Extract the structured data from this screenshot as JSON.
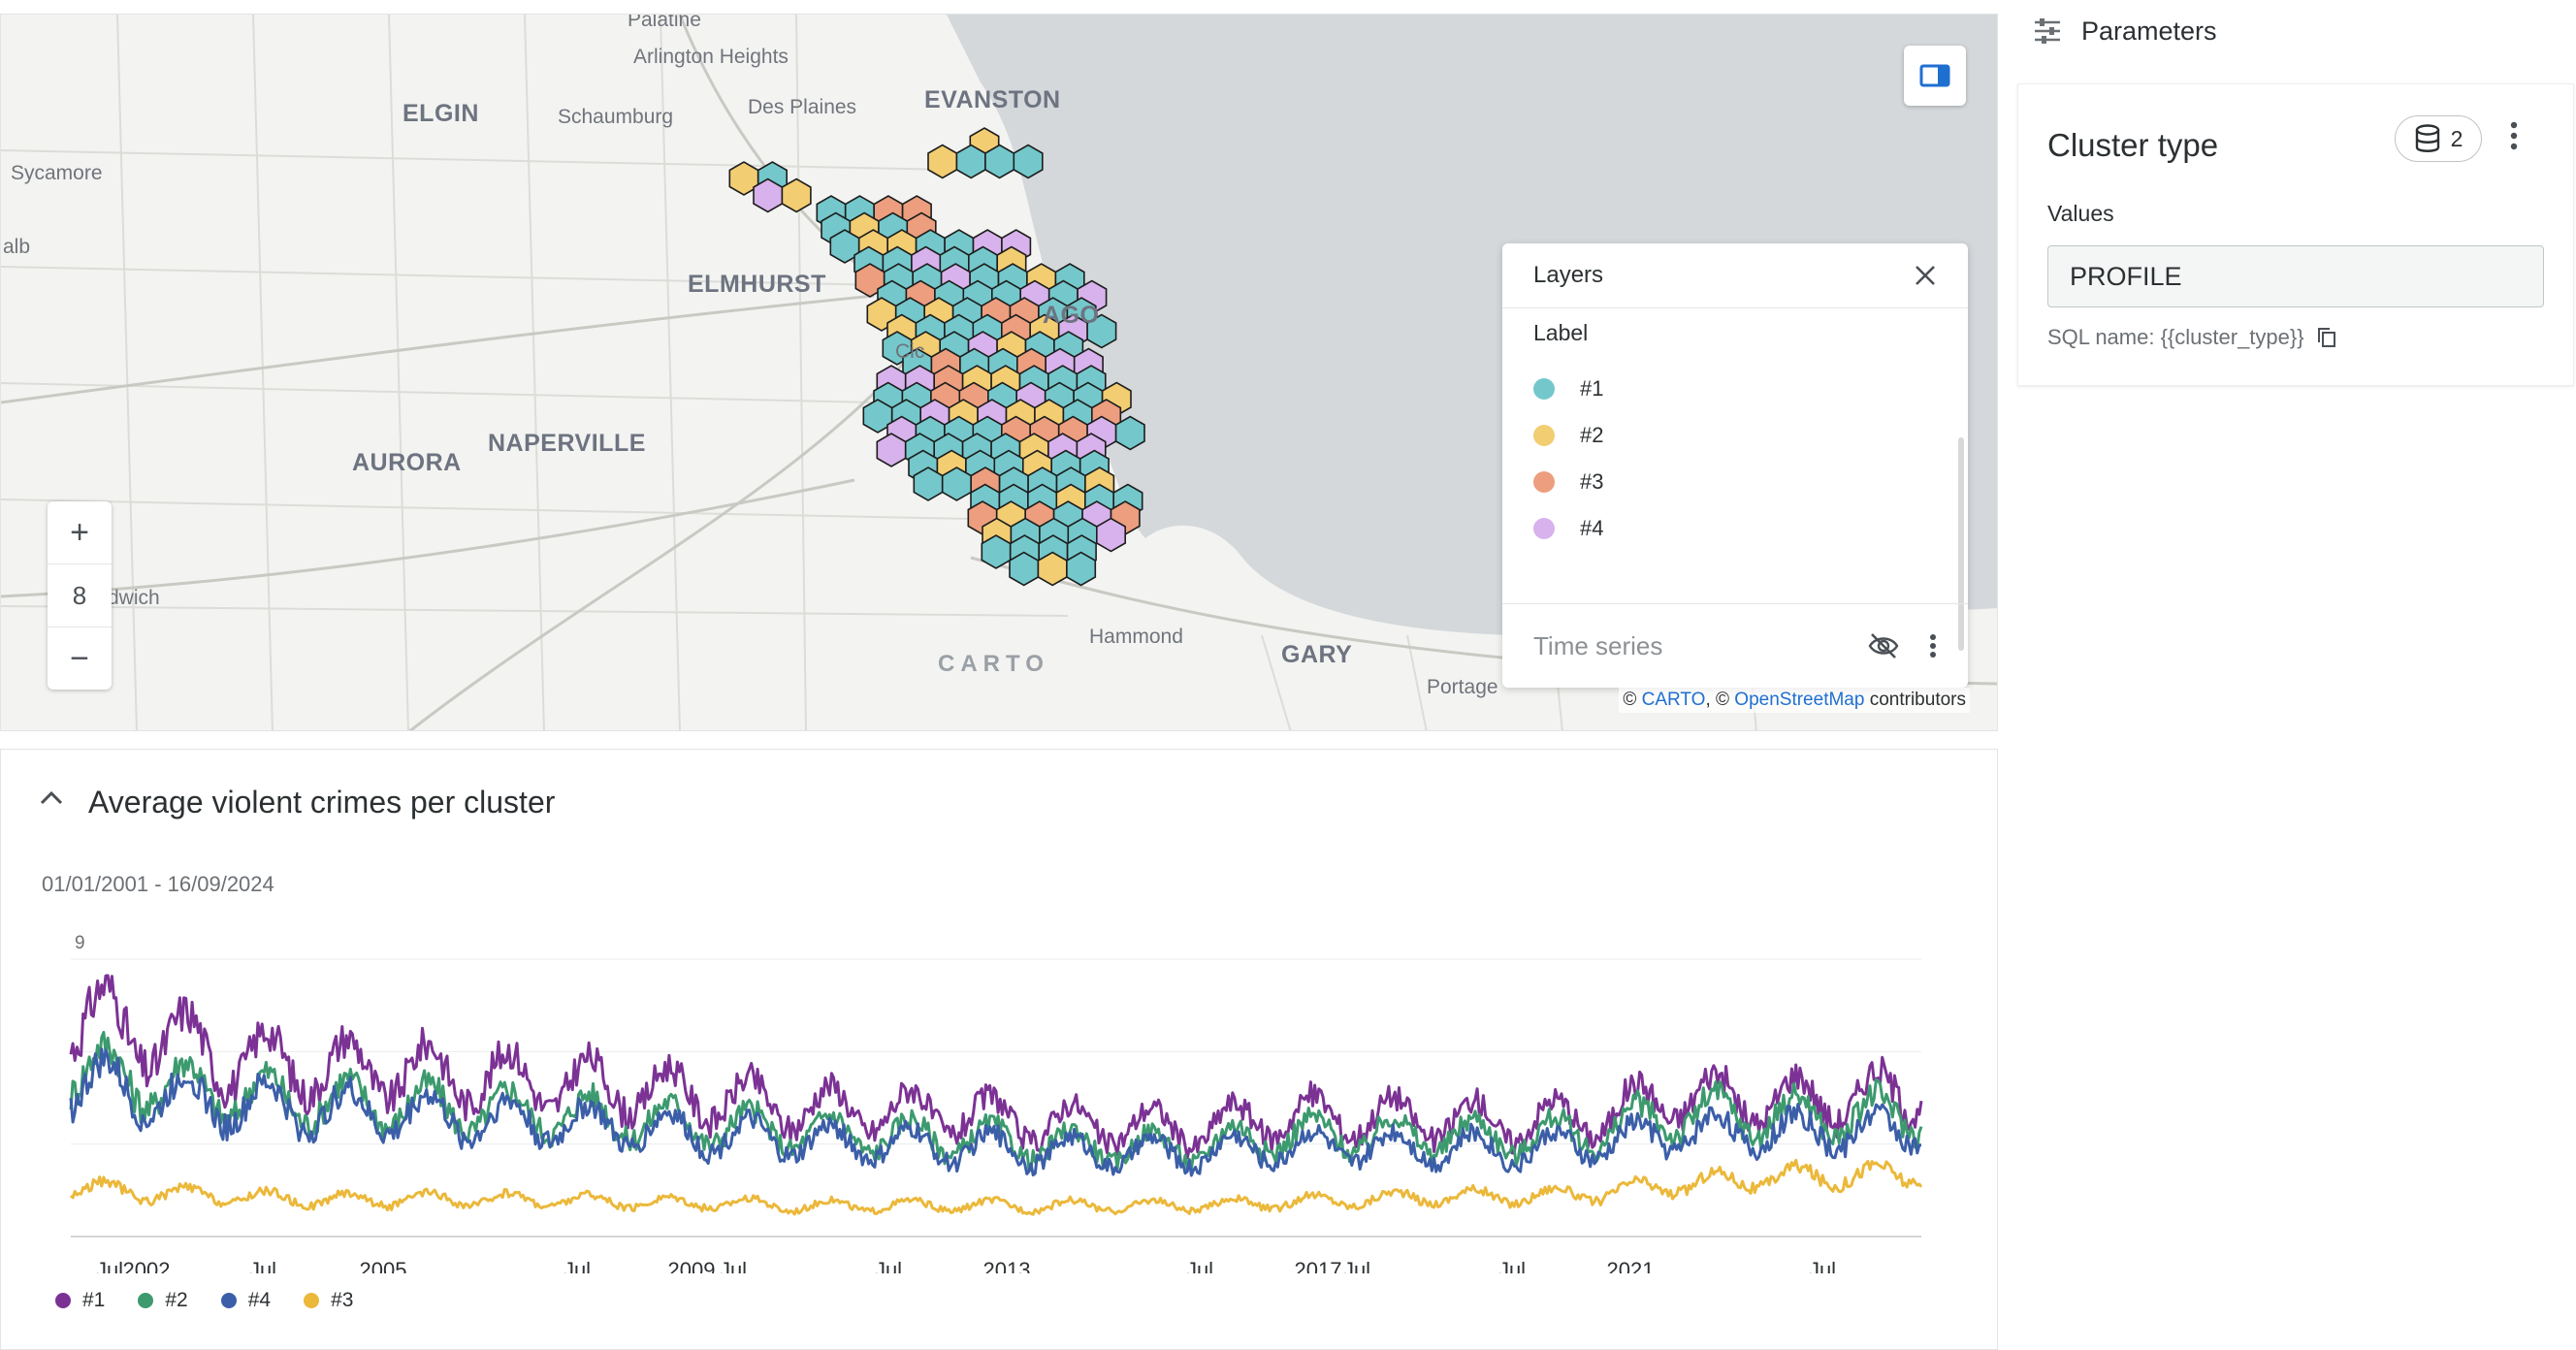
{
  "map": {
    "labels": {
      "palatine": "Palatine",
      "arlington": "Arlington Heights",
      "evanston": "EVANSTON",
      "elgin": "ELGIN",
      "schaumburg": "Schaumburg",
      "desplaines": "Des Plaines",
      "sycamore": "Sycamore",
      "dekalb": "alb",
      "elmhurst": "ELMHURST",
      "chicago": "AGO",
      "cicero": "Cic",
      "aurora": "AURORA",
      "naperville": "NAPERVILLE",
      "sandwich": "dwich",
      "hammond": "Hammond",
      "gary": "GARY",
      "portage": "Portage"
    },
    "zoom_in": "+",
    "zoom_level": "8",
    "zoom_out": "−",
    "carto_watermark": "CARTO",
    "attribution": {
      "prefix": "©",
      "carto": "CARTO",
      "sep": ", ©",
      "osm": "OpenStreetMap",
      "suffix": "contributors"
    }
  },
  "layers_panel": {
    "title": "Layers",
    "subtitle": "Label",
    "items": [
      {
        "label": "#1",
        "color": "#74c8cb"
      },
      {
        "label": "#2",
        "color": "#f2cd72"
      },
      {
        "label": "#3",
        "color": "#ec9e7e"
      },
      {
        "label": "#4",
        "color": "#d8b2ec"
      }
    ],
    "footer_layer": "Time series"
  },
  "chart_card": {
    "title": "Average violent crimes per cluster",
    "date_range": "01/01/2001 - 16/09/2024",
    "legend": [
      {
        "label": "#1",
        "color": "#7b3294"
      },
      {
        "label": "#2",
        "color": "#3c9a6e"
      },
      {
        "label": "#4",
        "color": "#3b5ea8"
      },
      {
        "label": "#3",
        "color": "#ebb83a"
      }
    ]
  },
  "chart_data": {
    "type": "line",
    "ymax_label": "9",
    "ylim": [
      0,
      9
    ],
    "x_ticks": [
      "Jul",
      "2002",
      "Jul",
      "2005",
      "Jul",
      "2009",
      "Jul",
      "Jul",
      "2013",
      "Jul",
      "2017",
      "Jul",
      "Jul",
      "2021",
      "Jul"
    ],
    "x_range": [
      "2001-01-01",
      "2024-09-16"
    ],
    "series": [
      {
        "name": "#1",
        "color": "#7b3294",
        "x": [
          "2001",
          "2002",
          "2003",
          "2004",
          "2005",
          "2006",
          "2007",
          "2008",
          "2009",
          "2010",
          "2011",
          "2012",
          "2013",
          "2014",
          "2015",
          "2016",
          "2017",
          "2018",
          "2019",
          "2020",
          "2021",
          "2022",
          "2023",
          "2024"
        ],
        "values": [
          7.2,
          6.5,
          5.8,
          5.5,
          5.4,
          5.2,
          5.0,
          4.8,
          4.5,
          4.2,
          4.1,
          4.0,
          3.7,
          3.6,
          3.5,
          3.9,
          3.9,
          3.8,
          3.7,
          3.9,
          4.6,
          4.4,
          4.5,
          4.7
        ]
      },
      {
        "name": "#2",
        "color": "#3c9a6e",
        "x": [
          "2001",
          "2002",
          "2003",
          "2004",
          "2005",
          "2006",
          "2007",
          "2008",
          "2009",
          "2010",
          "2011",
          "2012",
          "2013",
          "2014",
          "2015",
          "2016",
          "2017",
          "2018",
          "2019",
          "2020",
          "2021",
          "2022",
          "2023",
          "2024"
        ],
        "values": [
          5.5,
          5.0,
          4.6,
          4.4,
          4.3,
          4.1,
          4.0,
          3.8,
          3.6,
          3.4,
          3.3,
          3.2,
          3.0,
          2.9,
          2.9,
          3.3,
          3.3,
          3.3,
          3.2,
          3.4,
          4.0,
          3.9,
          3.9,
          4.0
        ]
      },
      {
        "name": "#4",
        "color": "#3b5ea8",
        "x": [
          "2001",
          "2002",
          "2003",
          "2004",
          "2005",
          "2006",
          "2007",
          "2008",
          "2009",
          "2010",
          "2011",
          "2012",
          "2013",
          "2014",
          "2015",
          "2016",
          "2017",
          "2018",
          "2019",
          "2020",
          "2021",
          "2022",
          "2023",
          "2024"
        ],
        "values": [
          5.0,
          4.6,
          4.3,
          4.1,
          4.0,
          3.8,
          3.7,
          3.5,
          3.3,
          3.1,
          3.0,
          2.9,
          2.8,
          2.7,
          2.7,
          2.9,
          2.9,
          2.9,
          2.8,
          3.0,
          3.4,
          3.4,
          3.4,
          3.5
        ]
      },
      {
        "name": "#3",
        "color": "#ebb83a",
        "x": [
          "2001",
          "2002",
          "2003",
          "2004",
          "2005",
          "2006",
          "2007",
          "2008",
          "2009",
          "2010",
          "2011",
          "2012",
          "2013",
          "2014",
          "2015",
          "2016",
          "2017",
          "2018",
          "2019",
          "2020",
          "2021",
          "2022",
          "2023",
          "2024"
        ],
        "values": [
          1.6,
          1.4,
          1.3,
          1.2,
          1.2,
          1.2,
          1.2,
          1.1,
          1.1,
          1.0,
          1.0,
          1.0,
          1.0,
          1.0,
          1.0,
          1.1,
          1.2,
          1.3,
          1.3,
          1.4,
          1.7,
          1.9,
          2.0,
          2.0
        ]
      }
    ]
  },
  "parameters": {
    "header": "Parameters",
    "card": {
      "title": "Cluster type",
      "badge_count": "2",
      "values_label": "Values",
      "value": "PROFILE",
      "sql_name": "SQL name: {{cluster_type}}"
    }
  }
}
